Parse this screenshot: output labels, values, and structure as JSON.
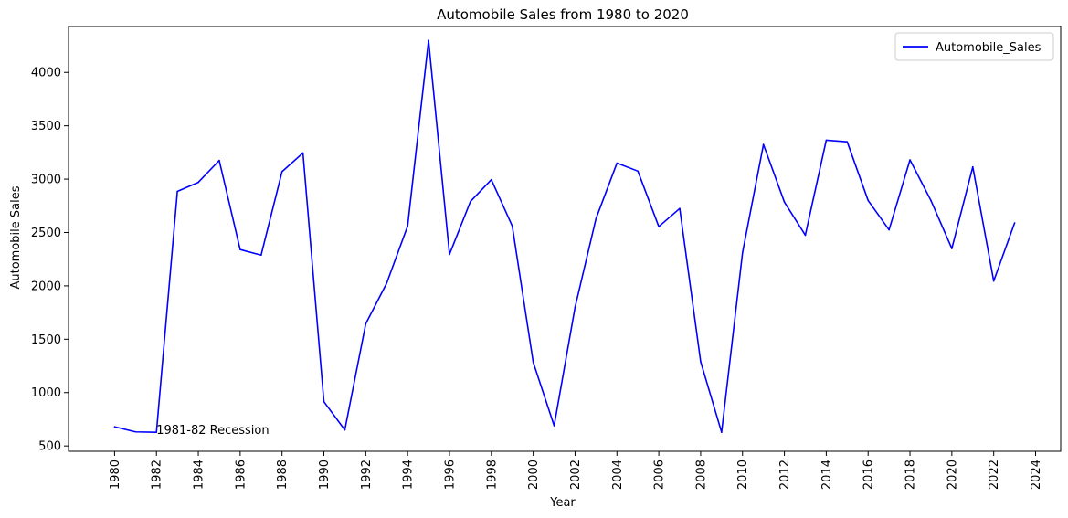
{
  "chart_data": {
    "type": "line",
    "title": "Automobile Sales from 1980 to 2020",
    "xlabel": "Year",
    "ylabel": "Automobile Sales",
    "xlim": [
      1977.8,
      2025.2
    ],
    "ylim": [
      450,
      4430
    ],
    "x_ticks": [
      1980,
      1982,
      1984,
      1986,
      1988,
      1990,
      1992,
      1994,
      1996,
      1998,
      2000,
      2002,
      2004,
      2006,
      2008,
      2010,
      2012,
      2014,
      2016,
      2018,
      2020,
      2022,
      2024
    ],
    "y_ticks": [
      500,
      1000,
      1500,
      2000,
      2500,
      3000,
      3500,
      4000
    ],
    "x_tick_labels": [
      "1980",
      "1982",
      "1984",
      "1986",
      "1988",
      "1990",
      "1992",
      "1994",
      "1996",
      "1998",
      "2000",
      "2002",
      "2004",
      "2006",
      "2008",
      "2010",
      "2012",
      "2014",
      "2016",
      "2018",
      "2020",
      "2022",
      "2024"
    ],
    "y_tick_labels": [
      "500",
      "1000",
      "1500",
      "2000",
      "2500",
      "3000",
      "3500",
      "4000"
    ],
    "grid": false,
    "legend_position": "top-right",
    "series": [
      {
        "name": "Automobile_Sales",
        "color": "#0000ff",
        "x": [
          1980,
          1981,
          1982,
          1983,
          1984,
          1985,
          1986,
          1987,
          1988,
          1989,
          1990,
          1991,
          1992,
          1993,
          1994,
          1995,
          1996,
          1997,
          1998,
          1999,
          2000,
          2001,
          2002,
          2003,
          2004,
          2005,
          2006,
          2007,
          2008,
          2009,
          2010,
          2011,
          2012,
          2013,
          2014,
          2015,
          2016,
          2017,
          2018,
          2019,
          2020,
          2021,
          2022,
          2023
        ],
        "y": [
          680,
          632,
          628,
          2885,
          2970,
          3175,
          2340,
          2288,
          3070,
          3245,
          915,
          650,
          1645,
          2025,
          2560,
          4300,
          2295,
          2790,
          2995,
          2560,
          1285,
          690,
          1800,
          2630,
          3150,
          3075,
          2555,
          2725,
          1290,
          628,
          2310,
          3325,
          2785,
          2475,
          3365,
          3350,
          2800,
          2525,
          3180,
          2800,
          2350,
          3115,
          2045,
          2590
        ]
      }
    ],
    "annotations": [
      {
        "text": "1981-82 Recession",
        "x": 1982,
        "y": 650
      }
    ]
  }
}
